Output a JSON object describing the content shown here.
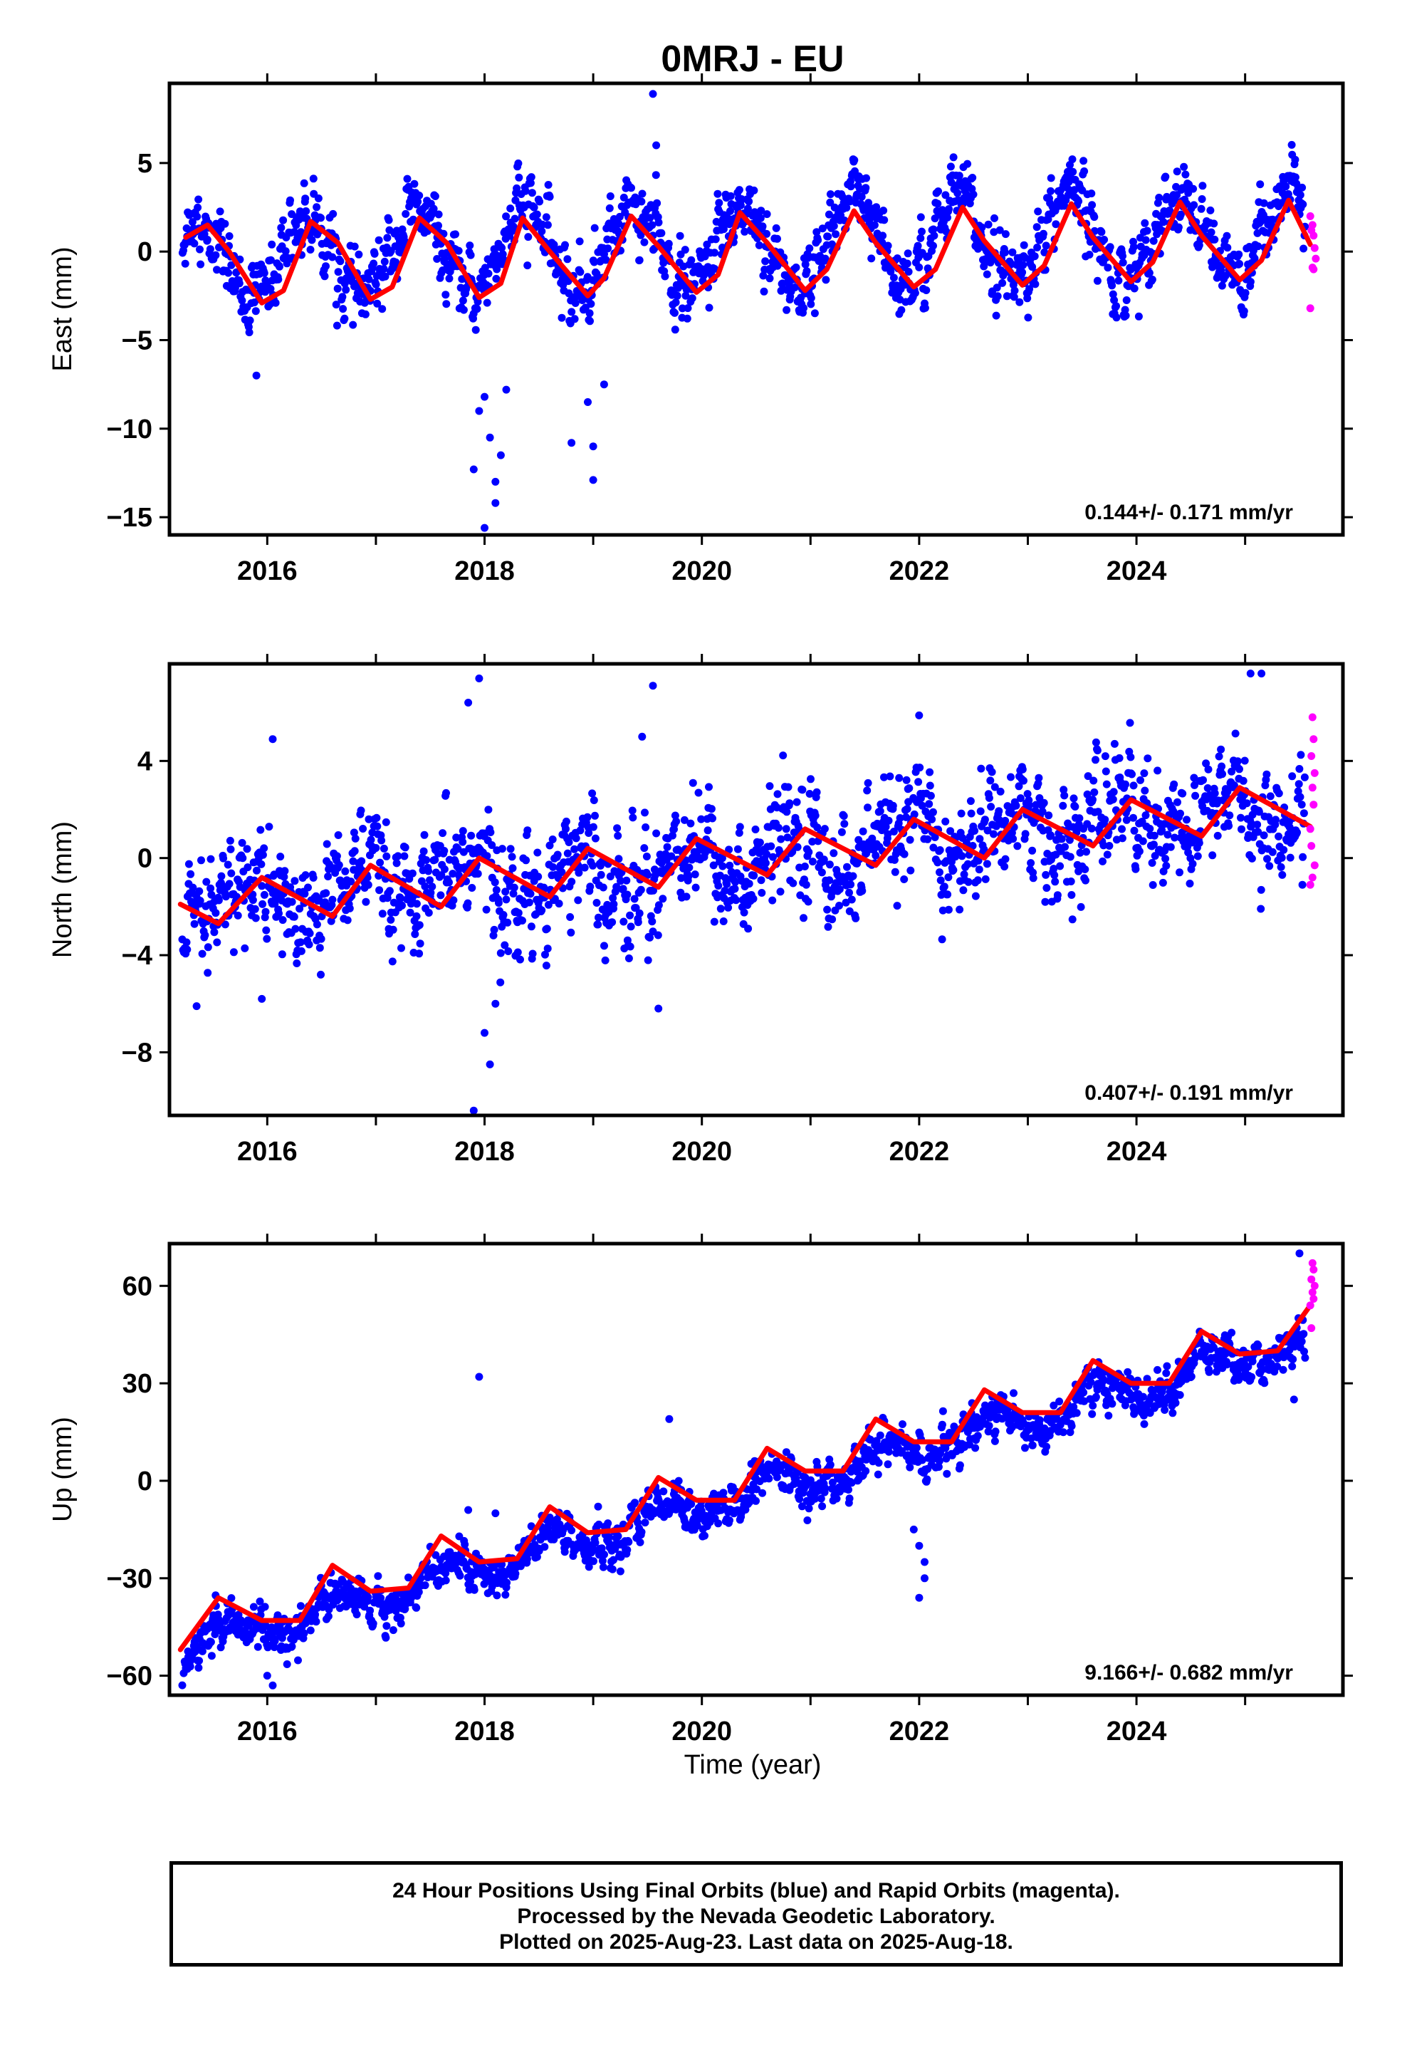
{
  "title": "0MRJ - EU",
  "xlabel": "Time (year)",
  "footer": {
    "line1": "24 Hour Positions Using Final Orbits (blue) and Rapid Orbits (magenta).",
    "line2": "Processed by the Nevada Geodetic Laboratory.",
    "line3": "Plotted on 2025-Aug-23. Last data on 2025-Aug-18."
  },
  "colors": {
    "final": "#0000ff",
    "rapid": "#ff00ff",
    "fit": "#ff0000",
    "frame": "#000000"
  },
  "chart_data": [
    {
      "type": "scatter",
      "ylabel": "East (mm)",
      "rate": "0.144+/- 0.171 mm/yr",
      "xlim": [
        2015.1,
        2025.9
      ],
      "ylim": [
        -16.0,
        9.5
      ],
      "yticks": [
        5,
        0,
        -5,
        -10,
        -15
      ],
      "ytick_labels": [
        "5",
        "0",
        "−5",
        "−10",
        "−15"
      ],
      "xticks": [
        2016,
        2018,
        2020,
        2022,
        2024
      ],
      "xtick_labels": [
        "2016",
        "2018",
        "2020",
        "2022",
        "2024"
      ],
      "grid": false,
      "series": [
        {
          "kind": "final",
          "trend": 0.144,
          "annual_amp": 2.3,
          "annual_phase": 0.12,
          "noise": 1.2,
          "offset": -0.5,
          "outliers": [
            [
              2017.9,
              -12.3
            ],
            [
              2017.95,
              -9.0
            ],
            [
              2018.0,
              -8.2
            ],
            [
              2018.05,
              -10.5
            ],
            [
              2018.1,
              -13.0
            ],
            [
              2018.15,
              -11.5
            ],
            [
              2018.0,
              -15.6
            ],
            [
              2018.2,
              -7.8
            ],
            [
              2018.1,
              -14.2
            ],
            [
              2019.55,
              8.9
            ],
            [
              2019.58,
              6.0
            ],
            [
              2018.8,
              -10.8
            ],
            [
              2019.0,
              -12.9
            ],
            [
              2019.0,
              -11.0
            ],
            [
              2015.9,
              -7.0
            ],
            [
              2019.1,
              -7.5
            ],
            [
              2018.95,
              -8.5
            ]
          ]
        },
        {
          "kind": "rapid",
          "points": [
            [
              2025.6,
              2.0
            ],
            [
              2025.62,
              1.5
            ],
            [
              2025.63,
              0.9
            ],
            [
              2025.64,
              0.2
            ],
            [
              2025.65,
              -0.4
            ],
            [
              2025.62,
              -0.9
            ],
            [
              2025.6,
              -3.2
            ],
            [
              2025.63,
              -1.0
            ],
            [
              2025.61,
              1.2
            ]
          ]
        }
      ],
      "fit_curve": [
        [
          2015.25,
          0.8
        ],
        [
          2015.45,
          1.5
        ],
        [
          2015.65,
          0.0
        ],
        [
          2015.95,
          -2.9
        ],
        [
          2016.15,
          -2.2
        ],
        [
          2016.4,
          1.7
        ],
        [
          2016.65,
          0.5
        ],
        [
          2016.95,
          -2.7
        ],
        [
          2017.15,
          -2.0
        ],
        [
          2017.4,
          1.9
        ],
        [
          2017.65,
          0.5
        ],
        [
          2017.95,
          -2.6
        ],
        [
          2018.15,
          -1.8
        ],
        [
          2018.35,
          1.9
        ],
        [
          2018.6,
          0.0
        ],
        [
          2018.95,
          -2.5
        ],
        [
          2019.1,
          -1.5
        ],
        [
          2019.35,
          2.0
        ],
        [
          2019.6,
          0.3
        ],
        [
          2019.95,
          -2.3
        ],
        [
          2020.15,
          -1.3
        ],
        [
          2020.35,
          2.2
        ],
        [
          2020.6,
          0.5
        ],
        [
          2020.95,
          -2.2
        ],
        [
          2021.15,
          -1.0
        ],
        [
          2021.4,
          2.3
        ],
        [
          2021.6,
          0.5
        ],
        [
          2021.95,
          -2.0
        ],
        [
          2022.15,
          -1.0
        ],
        [
          2022.4,
          2.5
        ],
        [
          2022.6,
          0.6
        ],
        [
          2022.95,
          -1.9
        ],
        [
          2023.15,
          -0.8
        ],
        [
          2023.4,
          2.7
        ],
        [
          2023.6,
          0.8
        ],
        [
          2023.95,
          -1.7
        ],
        [
          2024.15,
          -0.6
        ],
        [
          2024.4,
          2.8
        ],
        [
          2024.6,
          0.9
        ],
        [
          2024.95,
          -1.6
        ],
        [
          2025.15,
          -0.5
        ],
        [
          2025.4,
          2.9
        ],
        [
          2025.6,
          0.4
        ]
      ]
    },
    {
      "type": "scatter",
      "ylabel": "North (mm)",
      "rate": "0.407+/- 0.191 mm/yr",
      "xlim": [
        2015.1,
        2025.9
      ],
      "ylim": [
        -10.6,
        8.0
      ],
      "yticks": [
        4,
        0,
        -4,
        -8
      ],
      "ytick_labels": [
        "4",
        "0",
        "−4",
        "−8"
      ],
      "xticks": [
        2016,
        2018,
        2020,
        2022,
        2024
      ],
      "xtick_labels": [
        "2016",
        "2018",
        "2020",
        "2022",
        "2024"
      ],
      "grid": false,
      "series": [
        {
          "kind": "final",
          "trend": 0.407,
          "annual_amp": 1.0,
          "annual_phase": 0.6,
          "noise": 1.35,
          "offset": -2.1,
          "outliers": [
            [
              2017.85,
              6.4
            ],
            [
              2017.95,
              7.4
            ],
            [
              2019.55,
              7.1
            ],
            [
              2019.45,
              5.0
            ],
            [
              2018.0,
              -7.2
            ],
            [
              2018.05,
              -8.5
            ],
            [
              2017.9,
              -10.4
            ],
            [
              2018.1,
              -6.0
            ],
            [
              2016.05,
              4.9
            ],
            [
              2019.6,
              -6.2
            ],
            [
              2025.05,
              7.6
            ],
            [
              2025.15,
              7.6
            ],
            [
              2015.35,
              -6.1
            ],
            [
              2015.95,
              -5.8
            ]
          ]
        },
        {
          "kind": "rapid",
          "points": [
            [
              2025.62,
              5.8
            ],
            [
              2025.63,
              4.9
            ],
            [
              2025.61,
              4.2
            ],
            [
              2025.64,
              3.5
            ],
            [
              2025.62,
              2.9
            ],
            [
              2025.63,
              2.2
            ],
            [
              2025.6,
              1.2
            ],
            [
              2025.61,
              0.5
            ],
            [
              2025.64,
              -0.3
            ],
            [
              2025.62,
              -0.8
            ],
            [
              2025.6,
              -1.1
            ]
          ]
        }
      ],
      "fit_curve": [
        [
          2015.2,
          -1.9
        ],
        [
          2015.55,
          -2.7
        ],
        [
          2015.95,
          -0.8
        ],
        [
          2016.6,
          -2.4
        ],
        [
          2016.95,
          -0.3
        ],
        [
          2017.6,
          -2.0
        ],
        [
          2017.95,
          0.0
        ],
        [
          2018.6,
          -1.6
        ],
        [
          2018.95,
          0.4
        ],
        [
          2019.6,
          -1.2
        ],
        [
          2019.95,
          0.8
        ],
        [
          2020.6,
          -0.7
        ],
        [
          2020.95,
          1.2
        ],
        [
          2021.6,
          -0.3
        ],
        [
          2021.95,
          1.6
        ],
        [
          2022.6,
          0.0
        ],
        [
          2022.95,
          2.0
        ],
        [
          2023.6,
          0.5
        ],
        [
          2023.95,
          2.4
        ],
        [
          2024.6,
          0.9
        ],
        [
          2024.95,
          2.9
        ],
        [
          2025.6,
          1.3
        ]
      ]
    },
    {
      "type": "scatter",
      "ylabel": "Up (mm)",
      "rate": "9.166+/- 0.682 mm/yr",
      "xlim": [
        2015.1,
        2025.9
      ],
      "ylim": [
        -66,
        73
      ],
      "yticks": [
        60,
        30,
        0,
        -30,
        -60
      ],
      "ytick_labels": [
        "60",
        "30",
        "0",
        "−30",
        "−60"
      ],
      "xticks": [
        2016,
        2018,
        2020,
        2022,
        2024
      ],
      "xtick_labels": [
        "2016",
        "2018",
        "2020",
        "2022",
        "2024"
      ],
      "grid": false,
      "series": [
        {
          "kind": "final",
          "trend": 9.166,
          "annual_amp": 4.5,
          "annual_phase": 0.4,
          "noise": 4.0,
          "offset": -52,
          "outliers": [
            [
              2017.95,
              32
            ],
            [
              2022.0,
              -20
            ],
            [
              2022.05,
              -30
            ],
            [
              2022.0,
              -36
            ],
            [
              2021.95,
              -15
            ],
            [
              2022.05,
              -25
            ],
            [
              2016.05,
              -63
            ],
            [
              2016.0,
              -60
            ],
            [
              2025.5,
              70
            ],
            [
              2025.45,
              25
            ],
            [
              2018.1,
              -10
            ],
            [
              2017.85,
              -9
            ],
            [
              2019.7,
              19
            ]
          ]
        },
        {
          "kind": "rapid",
          "points": [
            [
              2025.62,
              67
            ],
            [
              2025.63,
              65
            ],
            [
              2025.61,
              62
            ],
            [
              2025.64,
              60
            ],
            [
              2025.62,
              58
            ],
            [
              2025.63,
              56
            ],
            [
              2025.6,
              54
            ],
            [
              2025.61,
              47
            ]
          ]
        }
      ],
      "fit_curve": [
        [
          2015.2,
          -52
        ],
        [
          2015.55,
          -36
        ],
        [
          2015.95,
          -43
        ],
        [
          2016.3,
          -43
        ],
        [
          2016.6,
          -26
        ],
        [
          2016.95,
          -34
        ],
        [
          2017.3,
          -33
        ],
        [
          2017.6,
          -17
        ],
        [
          2017.95,
          -25
        ],
        [
          2018.3,
          -24
        ],
        [
          2018.6,
          -8
        ],
        [
          2018.95,
          -16
        ],
        [
          2019.3,
          -15
        ],
        [
          2019.6,
          1
        ],
        [
          2019.95,
          -6
        ],
        [
          2020.3,
          -6
        ],
        [
          2020.6,
          10
        ],
        [
          2020.95,
          3
        ],
        [
          2021.3,
          3
        ],
        [
          2021.6,
          19
        ],
        [
          2021.95,
          12
        ],
        [
          2022.3,
          12
        ],
        [
          2022.6,
          28
        ],
        [
          2022.95,
          21
        ],
        [
          2023.3,
          21
        ],
        [
          2023.6,
          37
        ],
        [
          2023.95,
          30
        ],
        [
          2024.3,
          30
        ],
        [
          2024.6,
          46
        ],
        [
          2024.95,
          39
        ],
        [
          2025.3,
          40
        ],
        [
          2025.6,
          54
        ]
      ]
    }
  ]
}
